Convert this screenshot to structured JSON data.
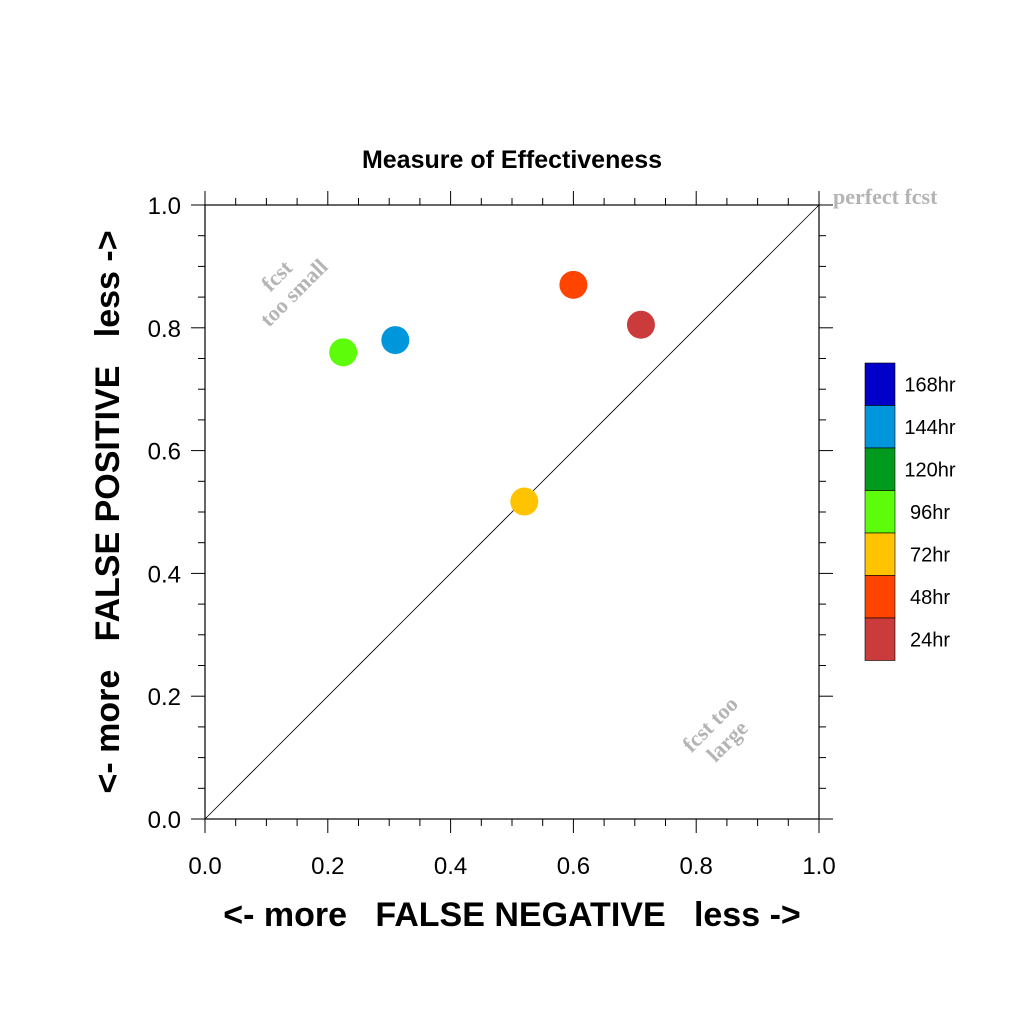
{
  "chart_data": {
    "type": "scatter",
    "title": "Measure of Effectiveness",
    "xlabel": "<- more   FALSE NEGATIVE   less ->",
    "ylabel": "<- more   FALSE POSITIVE   less ->",
    "xlim": [
      0.0,
      1.0
    ],
    "ylim": [
      0.0,
      1.0
    ],
    "x_ticks": [
      "0.0",
      "0.2",
      "0.4",
      "0.6",
      "0.8",
      "1.0"
    ],
    "y_ticks": [
      "0.0",
      "0.2",
      "0.4",
      "0.6",
      "0.8",
      "1.0"
    ],
    "grid": false,
    "diagonal_line": true,
    "annotations": {
      "perfect": "perfect fcst",
      "small_line1": "fcst",
      "small_line2": "too small",
      "large_line1": "fcst too",
      "large_line2": "large"
    },
    "points": [
      {
        "x": 0.71,
        "y": 0.805,
        "color": "#cc3b3b"
      },
      {
        "x": 0.6,
        "y": 0.87,
        "color": "#ff4400"
      },
      {
        "x": 0.52,
        "y": 0.517,
        "color": "#ffc300"
      },
      {
        "x": 0.225,
        "y": 0.76,
        "color": "#5dfc0a"
      },
      {
        "x": 0.31,
        "y": 0.78,
        "color": "#0096dc"
      }
    ],
    "legend": [
      {
        "label": "168hr",
        "color": "#0000c8"
      },
      {
        "label": "144hr",
        "color": "#0096dc"
      },
      {
        "label": "120hr",
        "color": "#009b1e"
      },
      {
        "label": "96hr",
        "color": "#5dfc0a"
      },
      {
        "label": "72hr",
        "color": "#ffc300"
      },
      {
        "label": "48hr",
        "color": "#ff4400"
      },
      {
        "label": "24hr",
        "color": "#cc3b3b"
      }
    ]
  }
}
